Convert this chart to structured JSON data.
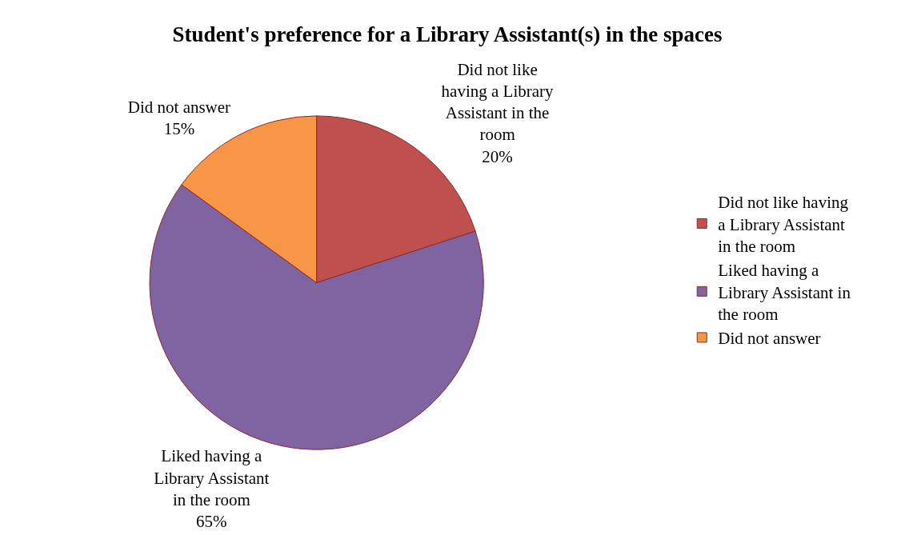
{
  "chart_data": {
    "type": "pie",
    "title": "Student's preference for a Library Assistant(s) in the spaces",
    "categories": [
      "Did not like having a Library Assistant in the room",
      "Liked having a Library Assistant in the room",
      "Did not answer"
    ],
    "values": [
      20,
      65,
      15
    ],
    "value_labels": [
      "20%",
      "65%",
      "15%"
    ],
    "colors": [
      "#c0504d",
      "#8064a2",
      "#f79646"
    ],
    "legend": "right"
  }
}
